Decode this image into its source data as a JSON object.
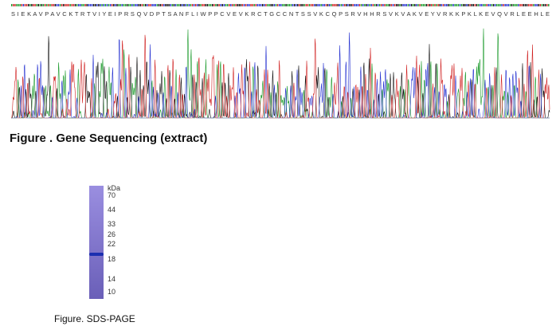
{
  "sequencing": {
    "protein_sequence": "S I E K A V P A V C K T R T V I Y E I P R S Q V D P T S A N F L I W P P C V E V K R C T G C C N T S S V K C Q P S R V H H R S V K V A K V E Y V R K K P K L K E V Q V R L E E H L E",
    "caption": "Figure . Gene Sequencing (extract)"
  },
  "sds_page": {
    "unit": "kDa",
    "markers": [
      "70",
      "44",
      "33",
      "26",
      "22",
      "18",
      "14",
      "10"
    ],
    "caption": "Figure. SDS-PAGE"
  }
}
